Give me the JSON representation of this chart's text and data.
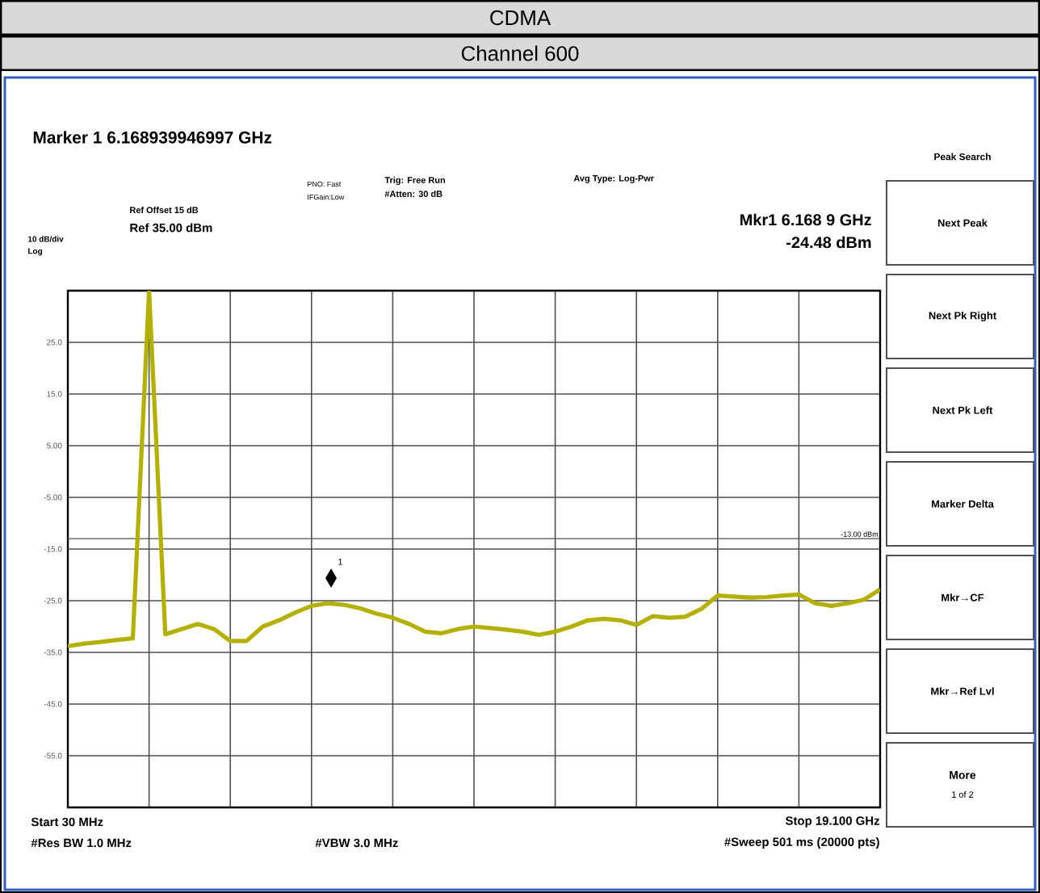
{
  "chart_data": {
    "type": "line",
    "title": "CDMA",
    "subtitle": "Channel 600",
    "categories": [
      null,
      null,
      null,
      null,
      null,
      null,
      null,
      null,
      null,
      null,
      null,
      null,
      null,
      null,
      null,
      null,
      null,
      null,
      null,
      null,
      null,
      null,
      null,
      null,
      null,
      null,
      null,
      null,
      null,
      null,
      null,
      null,
      null,
      null,
      null,
      null,
      null,
      null,
      null,
      null,
      null,
      null,
      null,
      null,
      null,
      null,
      null,
      null,
      null,
      null,
      null
    ],
    "series": [
      {
        "color": "#b4b000",
        "values": [
          -33.8,
          -33.3,
          -33.0,
          -32.6,
          -32.3,
          35,
          -31.5,
          -30.5,
          -29.5,
          -30.5,
          -32.8,
          -32.8,
          -30.0,
          -28.8,
          -27.3,
          -26.0,
          -25.5,
          -25.8,
          -26.5,
          -27.5,
          -28.3,
          -29.5,
          -31.0,
          -31.3,
          -30.5,
          -30.0,
          -30.3,
          -30.6,
          -31.0,
          -31.6,
          -31.0,
          -30.0,
          -28.8,
          -28.5,
          -28.8,
          -29.7,
          -28.0,
          -28.3,
          -28.1,
          -26.6,
          -24.0,
          -24.2,
          -24.4,
          -24.3,
          -24.0,
          -23.8,
          -25.5,
          -26.0,
          -25.5,
          -24.8,
          -22.8
        ]
      }
    ],
    "ylim": [
      -65,
      35
    ],
    "yticks": [
      {
        "value": 35,
        "label": null
      },
      {
        "value": 25,
        "label": "25.0"
      },
      {
        "value": 15,
        "label": "15.0"
      },
      {
        "value": 5,
        "label": "5.00"
      },
      {
        "value": -5,
        "label": "-5.00"
      },
      {
        "value": -15,
        "label": "-15.0"
      },
      {
        "value": -25,
        "label": "-25.0"
      },
      {
        "value": -35,
        "label": "-35.0"
      },
      {
        "value": -45,
        "label": "-45.0"
      },
      {
        "value": -55,
        "label": "-55.0"
      },
      {
        "value": -65,
        "label": null
      }
    ],
    "grid": true,
    "ref_lines": [
      {
        "axis": "y",
        "value": -13,
        "label": "-13.00 dBm"
      }
    ],
    "annotations": [
      "Marker 1 6.168939946997 GHz",
      "PNO: Fast",
      "IFGain:Low",
      "Trig: Free Run",
      "#Atten: 30 dB",
      "Avg Type: Log-Pwr",
      "Ref Offset 15 dB",
      "Ref 35.00 dBm",
      "10 dB/div",
      "Log",
      "Mkr1 6.168 9 GHz",
      "-24.48 dBm",
      "#Res BW 1.0 MHz",
      "#VBW 3.0 MHz",
      "#Sweep 501 ms (20000 pts)",
      "Peak Search",
      "Next Peak",
      "Next Pk Right",
      "Next Pk Left",
      "Marker Delta",
      "Mkr→CF",
      "Mkr→Ref Lvl",
      "More",
      "1 of 2",
      "1",
      "Start 30 MHz",
      "Stop 19.100 GHz"
    ]
  }
}
